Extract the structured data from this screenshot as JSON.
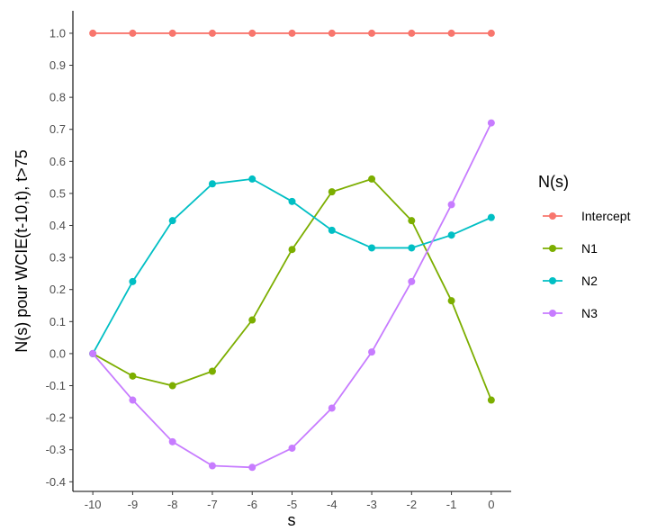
{
  "chart_data": {
    "type": "line",
    "xlabel": "s",
    "ylabel": "N(s) pour WCIE(t-10,t), t>75",
    "x": [
      -10,
      -9,
      -8,
      -7,
      -6,
      -5,
      -4,
      -3,
      -2,
      -1,
      0
    ],
    "x_tick_labels": [
      "-10",
      "-9",
      "-8",
      "-7",
      "-6",
      "-5",
      "-4",
      "-3",
      "-2",
      "-1",
      "0"
    ],
    "y_ticks": [
      -0.4,
      -0.3,
      -0.2,
      -0.1,
      0.0,
      0.1,
      0.2,
      0.3,
      0.4,
      0.5,
      0.6,
      0.7,
      0.8,
      0.9,
      1.0
    ],
    "y_tick_labels": [
      "-0.4",
      "-0.3",
      "-0.2",
      "-0.1",
      "0.0",
      "0.1",
      "0.2",
      "0.3",
      "0.4",
      "0.5",
      "0.6",
      "0.7",
      "0.8",
      "0.9",
      "1.0"
    ],
    "xlim": [
      -10.5,
      0.5
    ],
    "ylim": [
      -0.43,
      1.07
    ],
    "grid": false,
    "legend": {
      "title": "N(s)",
      "placement": "right"
    },
    "series": [
      {
        "name": "Intercept",
        "color": "#F8766D",
        "values": [
          1.0,
          1.0,
          1.0,
          1.0,
          1.0,
          1.0,
          1.0,
          1.0,
          1.0,
          1.0,
          1.0
        ]
      },
      {
        "name": "N1",
        "color": "#7CAE00",
        "values": [
          0.0,
          -0.07,
          -0.1,
          -0.055,
          0.105,
          0.325,
          0.505,
          0.545,
          0.415,
          0.165,
          -0.145
        ]
      },
      {
        "name": "N2",
        "color": "#00BFC4",
        "values": [
          0.0,
          0.225,
          0.415,
          0.53,
          0.545,
          0.475,
          0.385,
          0.33,
          0.33,
          0.37,
          0.425
        ]
      },
      {
        "name": "N3",
        "color": "#C77CFF",
        "values": [
          0.0,
          -0.145,
          -0.275,
          -0.35,
          -0.355,
          -0.295,
          -0.17,
          0.005,
          0.225,
          0.465,
          0.72
        ]
      }
    ]
  }
}
